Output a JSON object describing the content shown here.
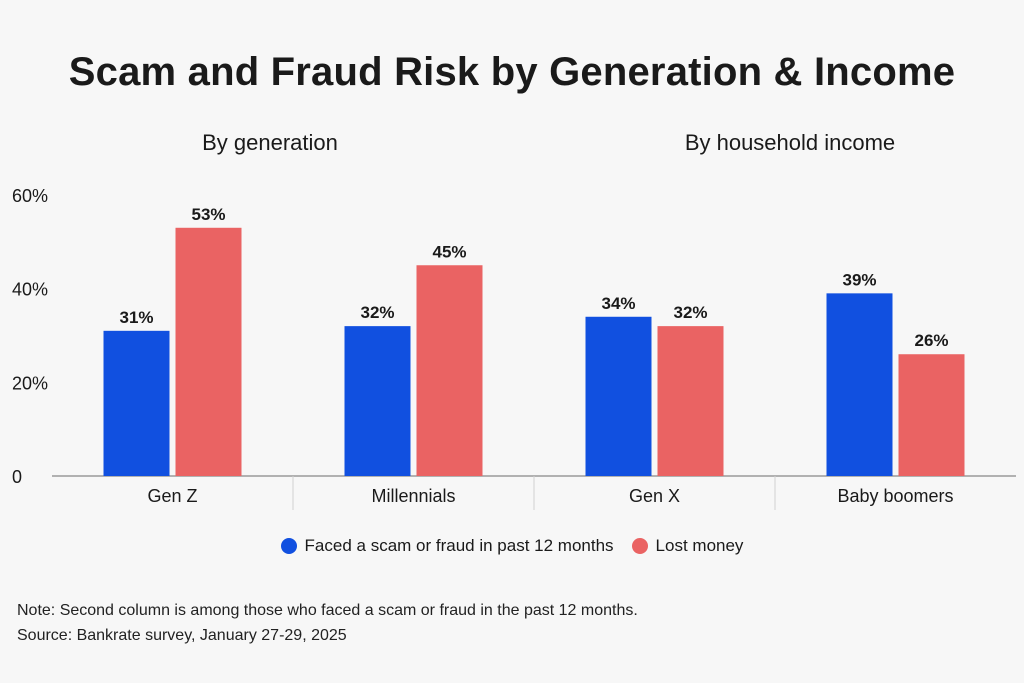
{
  "title": "Scam and Fraud Risk by Generation & Income",
  "subtitles": {
    "left": "By generation",
    "right": "By household income"
  },
  "colors": {
    "faced": "#1150e0",
    "lost": "#ea6363",
    "axis": "#9a9a9a",
    "text": "#1a1a1a"
  },
  "chart_data": {
    "type": "bar",
    "categories": [
      "Gen Z",
      "Millennials",
      "Gen X",
      "Baby boomers"
    ],
    "series": [
      {
        "name": "Faced a scam or fraud in past 12 months",
        "values": [
          31,
          32,
          34,
          39
        ],
        "labels": [
          "31%",
          "32%",
          "34%",
          "39%"
        ]
      },
      {
        "name": "Lost money",
        "values": [
          53,
          45,
          32,
          26
        ],
        "labels": [
          "53%",
          "45%",
          "32%",
          "26%"
        ]
      }
    ],
    "yticks": [
      "0",
      "20%",
      "40%",
      "60%"
    ],
    "ytick_values": [
      0,
      20,
      40,
      60
    ],
    "ylim": [
      0,
      60
    ],
    "legend_position": "bottom"
  },
  "legend": {
    "faced": "Faced a scam or fraud in past 12 months",
    "lost": "Lost money"
  },
  "footnote": {
    "note": "Note: Second column is among those who faced a scam or fraud in the past 12 months.",
    "source": "Source: Bankrate survey, January 27-29, 2025"
  }
}
